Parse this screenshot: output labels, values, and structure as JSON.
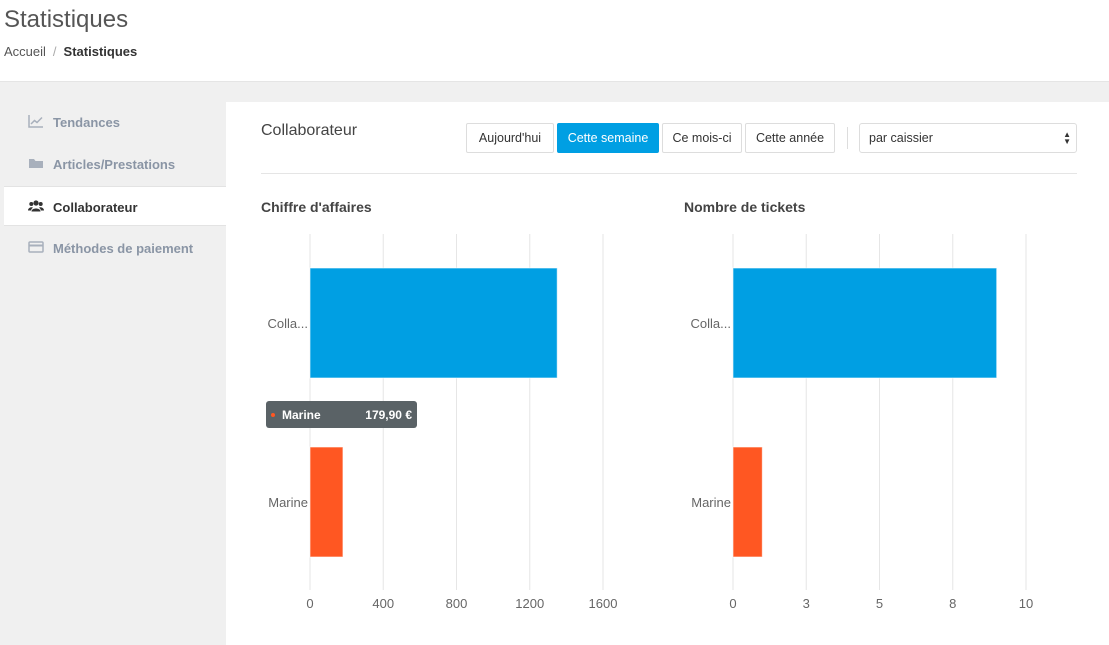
{
  "header": {
    "title": "Statistiques",
    "breadcrumb": {
      "home": "Accueil",
      "separator": "/",
      "current": "Statistiques"
    }
  },
  "sidebar": {
    "items": [
      {
        "label": "Tendances",
        "icon": "line-chart-icon",
        "active": false
      },
      {
        "label": "Articles/Prestations",
        "icon": "folder-icon",
        "active": false
      },
      {
        "label": "Collaborateur",
        "icon": "users-icon",
        "active": true
      },
      {
        "label": "Méthodes de paiement",
        "icon": "credit-card-icon",
        "active": false
      }
    ]
  },
  "main": {
    "section_title": "Collaborateur",
    "periods": [
      "Aujourd'hui",
      "Cette semaine",
      "Ce mois-ci",
      "Cette année"
    ],
    "active_period": "Cette semaine",
    "grouping_select": "par caissier"
  },
  "colors": {
    "accent": "#009fe3",
    "series_1": "#009fe3",
    "series_2": "#ff5722",
    "tooltip_bg": "#5a6266"
  },
  "chart_data": [
    {
      "type": "bar",
      "orientation": "horizontal",
      "title": "Chiffre d'affaires",
      "categories": [
        "Colla...",
        "Marine"
      ],
      "values": [
        1350,
        179.9
      ],
      "colors": [
        "#009fe3",
        "#ff5722"
      ],
      "xlim": [
        0,
        1600
      ],
      "ticks": [
        0,
        400,
        800,
        1200,
        1600
      ],
      "tick_labels": [
        "0",
        "400",
        "800",
        "1200",
        "1600"
      ],
      "grid": true,
      "tooltip": {
        "label": "Marine",
        "value": "179,90 €"
      }
    },
    {
      "type": "bar",
      "orientation": "horizontal",
      "title": "Nombre de tickets",
      "categories": [
        "Colla...",
        "Marine"
      ],
      "values": [
        9,
        1
      ],
      "colors": [
        "#009fe3",
        "#ff5722"
      ],
      "xlim": [
        0,
        10
      ],
      "ticks": [
        0,
        2.5,
        5,
        7.5,
        10
      ],
      "tick_labels": [
        "0",
        "3",
        "5",
        "8",
        "10"
      ],
      "grid": true
    }
  ]
}
